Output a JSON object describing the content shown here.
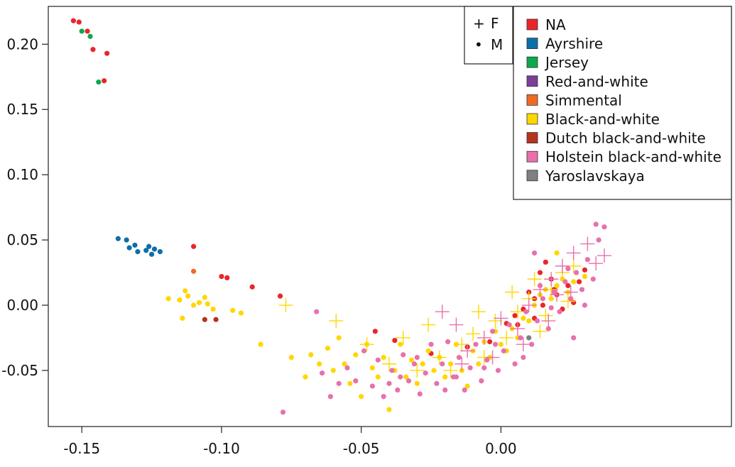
{
  "chart_data": {
    "type": "scatter",
    "title": "",
    "xlabel": "",
    "ylabel": "",
    "xlim": [
      -0.162,
      0.0825
    ],
    "ylim": [
      -0.093,
      0.229
    ],
    "x_ticks": [
      -0.15,
      -0.1,
      -0.05,
      0.0
    ],
    "x_tick_labels": [
      "-0.15",
      "-0.10",
      "-0.05",
      "0.00"
    ],
    "y_ticks": [
      0.2,
      0.15,
      0.1,
      0.05,
      0.0,
      -0.05
    ],
    "y_tick_labels": [
      "0.20",
      "0.15",
      "0.10",
      "0.05",
      "0.00",
      "-0.05"
    ],
    "grid": false,
    "legend_placement": "top-right",
    "sex_legend": [
      {
        "symbol": "+",
        "label": "F"
      },
      {
        "symbol": "•",
        "label": "M"
      }
    ],
    "series": [
      {
        "name": "NA",
        "color": "#e8262a",
        "points": [
          [
            -0.153,
            0.218,
            "M"
          ],
          [
            -0.151,
            0.217,
            "M"
          ],
          [
            -0.148,
            0.21,
            "M"
          ],
          [
            -0.146,
            0.196,
            "M"
          ],
          [
            -0.141,
            0.193,
            "M"
          ],
          [
            -0.142,
            0.172,
            "M"
          ],
          [
            -0.11,
            0.045,
            "M"
          ],
          [
            -0.1,
            0.022,
            "M"
          ],
          [
            -0.098,
            0.021,
            "M"
          ],
          [
            -0.089,
            0.014,
            "M"
          ],
          [
            -0.079,
            0.007,
            "M"
          ],
          [
            -0.045,
            -0.02,
            "M"
          ],
          [
            -0.038,
            -0.027,
            "M"
          ],
          [
            -0.025,
            -0.037,
            "M"
          ],
          [
            -0.012,
            -0.032,
            "M"
          ],
          [
            -0.004,
            -0.028,
            "M"
          ],
          [
            0.002,
            -0.014,
            "M"
          ],
          [
            0.005,
            -0.008,
            "M"
          ],
          [
            0.008,
            -0.003,
            "M"
          ],
          [
            0.01,
            0.01,
            "M"
          ],
          [
            0.012,
            0.005,
            "M"
          ],
          [
            0.014,
            0.025,
            "M"
          ],
          [
            0.016,
            0.033,
            "M"
          ],
          [
            0.018,
            0.02,
            "M"
          ],
          [
            0.02,
            0.008,
            "M"
          ],
          [
            0.022,
            -0.003,
            "M"
          ],
          [
            0.024,
            0.015,
            "M"
          ],
          [
            0.026,
            0.002,
            "M"
          ],
          [
            0.028,
            0.018,
            "M"
          ],
          [
            0.03,
            0.027,
            "M"
          ],
          [
            0.006,
            -0.015,
            "M"
          ],
          [
            0.012,
            -0.01,
            "M"
          ],
          [
            0.015,
            0.0,
            "M"
          ],
          [
            0.019,
            0.012,
            "M"
          ]
        ]
      },
      {
        "name": "Ayrshire",
        "color": "#0d6fa8",
        "points": [
          [
            -0.137,
            0.051,
            "M"
          ],
          [
            -0.134,
            0.05,
            "M"
          ],
          [
            -0.133,
            0.044,
            "M"
          ],
          [
            -0.131,
            0.046,
            "M"
          ],
          [
            -0.13,
            0.041,
            "M"
          ],
          [
            -0.127,
            0.042,
            "M"
          ],
          [
            -0.126,
            0.045,
            "M"
          ],
          [
            -0.125,
            0.039,
            "M"
          ],
          [
            -0.124,
            0.043,
            "M"
          ],
          [
            -0.122,
            0.041,
            "M"
          ]
        ]
      },
      {
        "name": "Jersey",
        "color": "#0da84e",
        "points": [
          [
            -0.15,
            0.21,
            "M"
          ],
          [
            -0.147,
            0.206,
            "M"
          ],
          [
            -0.144,
            0.171,
            "M"
          ]
        ]
      },
      {
        "name": "Red-and-white",
        "color": "#7b3f98",
        "points": []
      },
      {
        "name": "Simmental",
        "color": "#f06a23",
        "points": [
          [
            -0.11,
            0.026,
            "M"
          ]
        ]
      },
      {
        "name": "Black-and-white",
        "color": "#ffd700",
        "points": [
          [
            -0.119,
            0.005,
            "M"
          ],
          [
            -0.115,
            0.004,
            "M"
          ],
          [
            -0.113,
            0.011,
            "M"
          ],
          [
            -0.112,
            0.007,
            "M"
          ],
          [
            -0.11,
            0.0,
            "M"
          ],
          [
            -0.108,
            0.002,
            "M"
          ],
          [
            -0.106,
            0.006,
            "M"
          ],
          [
            -0.105,
            0.001,
            "M"
          ],
          [
            -0.103,
            -0.003,
            "M"
          ],
          [
            -0.096,
            -0.004,
            "M"
          ],
          [
            -0.093,
            -0.006,
            "M"
          ],
          [
            -0.114,
            -0.01,
            "M"
          ],
          [
            -0.086,
            -0.03,
            "M"
          ],
          [
            -0.075,
            -0.04,
            "M"
          ],
          [
            -0.07,
            -0.055,
            "M"
          ],
          [
            -0.068,
            -0.038,
            "M"
          ],
          [
            -0.065,
            -0.045,
            "M"
          ],
          [
            -0.062,
            -0.033,
            "M"
          ],
          [
            -0.06,
            -0.05,
            "M"
          ],
          [
            -0.058,
            -0.025,
            "M"
          ],
          [
            -0.056,
            -0.045,
            "M"
          ],
          [
            -0.054,
            -0.06,
            "M"
          ],
          [
            -0.052,
            -0.038,
            "M"
          ],
          [
            -0.05,
            -0.07,
            "M"
          ],
          [
            -0.048,
            -0.03,
            "M"
          ],
          [
            -0.046,
            -0.048,
            "M"
          ],
          [
            -0.044,
            -0.055,
            "M"
          ],
          [
            -0.042,
            -0.04,
            "M"
          ],
          [
            -0.04,
            -0.08,
            "M"
          ],
          [
            -0.038,
            -0.05,
            "M"
          ],
          [
            -0.036,
            -0.03,
            "M"
          ],
          [
            -0.034,
            -0.055,
            "M"
          ],
          [
            -0.032,
            -0.042,
            "M"
          ],
          [
            -0.03,
            -0.06,
            "M"
          ],
          [
            -0.028,
            -0.045,
            "M"
          ],
          [
            -0.026,
            -0.035,
            "M"
          ],
          [
            -0.024,
            -0.05,
            "M"
          ],
          [
            -0.022,
            -0.04,
            "M"
          ],
          [
            -0.02,
            -0.055,
            "M"
          ],
          [
            -0.018,
            -0.045,
            "M"
          ],
          [
            -0.016,
            -0.03,
            "M"
          ],
          [
            -0.014,
            -0.05,
            "M"
          ],
          [
            -0.012,
            -0.062,
            "M"
          ],
          [
            -0.01,
            -0.035,
            "M"
          ],
          [
            -0.008,
            -0.045,
            "M"
          ],
          [
            -0.006,
            -0.028,
            "M"
          ],
          [
            -0.004,
            -0.04,
            "M"
          ],
          [
            -0.002,
            -0.02,
            "M"
          ],
          [
            0.0,
            -0.03,
            "M"
          ],
          [
            0.002,
            -0.035,
            "M"
          ],
          [
            0.004,
            -0.018,
            "M"
          ],
          [
            0.006,
            -0.025,
            "M"
          ],
          [
            0.008,
            -0.01,
            "M"
          ],
          [
            0.01,
            -0.012,
            "M"
          ],
          [
            0.012,
            0.0,
            "M"
          ],
          [
            0.014,
            0.008,
            "M"
          ],
          [
            0.016,
            0.012,
            "M"
          ],
          [
            0.018,
            0.005,
            "M"
          ],
          [
            0.02,
            0.015,
            "M"
          ],
          [
            0.022,
            0.02,
            "M"
          ],
          [
            0.024,
            0.01,
            "M"
          ],
          [
            0.026,
            0.018,
            "M"
          ],
          [
            0.03,
            0.022,
            "M"
          ],
          [
            0.02,
            0.04,
            "M"
          ],
          [
            -0.077,
            0.0,
            "F"
          ],
          [
            -0.059,
            -0.012,
            "F"
          ],
          [
            -0.048,
            -0.03,
            "F"
          ],
          [
            -0.04,
            -0.045,
            "F"
          ],
          [
            -0.035,
            -0.025,
            "F"
          ],
          [
            -0.03,
            -0.05,
            "F"
          ],
          [
            -0.026,
            -0.015,
            "F"
          ],
          [
            -0.022,
            -0.04,
            "F"
          ],
          [
            -0.018,
            -0.05,
            "F"
          ],
          [
            -0.014,
            -0.03,
            "F"
          ],
          [
            -0.01,
            -0.022,
            "F"
          ],
          [
            -0.006,
            -0.04,
            "F"
          ],
          [
            -0.002,
            -0.012,
            "F"
          ],
          [
            0.002,
            -0.025,
            "F"
          ],
          [
            0.006,
            -0.005,
            "F"
          ],
          [
            0.01,
            0.005,
            "F"
          ],
          [
            0.014,
            -0.02,
            "F"
          ],
          [
            0.018,
            0.012,
            "F"
          ],
          [
            0.022,
            0.025,
            "F"
          ],
          [
            0.026,
            0.03,
            "F"
          ],
          [
            -0.008,
            -0.005,
            "F"
          ],
          [
            0.004,
            0.01,
            "F"
          ],
          [
            0.016,
            -0.008,
            "F"
          ],
          [
            0.024,
            0.003,
            "F"
          ],
          [
            0.012,
            0.02,
            "F"
          ]
        ]
      },
      {
        "name": "Dutch black-and-white",
        "color": "#b5341b",
        "points": [
          [
            -0.106,
            -0.011,
            "M"
          ],
          [
            -0.102,
            -0.011,
            "M"
          ]
        ]
      },
      {
        "name": "Holstein black-and-white",
        "color": "#e870ad",
        "points": [
          [
            -0.078,
            -0.082,
            "M"
          ],
          [
            -0.066,
            -0.005,
            "M"
          ],
          [
            -0.064,
            -0.052,
            "M"
          ],
          [
            -0.061,
            -0.07,
            "M"
          ],
          [
            -0.058,
            -0.06,
            "M"
          ],
          [
            -0.055,
            -0.048,
            "M"
          ],
          [
            -0.052,
            -0.058,
            "M"
          ],
          [
            -0.049,
            -0.035,
            "M"
          ],
          [
            -0.046,
            -0.062,
            "M"
          ],
          [
            -0.044,
            -0.042,
            "M"
          ],
          [
            -0.042,
            -0.07,
            "M"
          ],
          [
            -0.039,
            -0.05,
            "M"
          ],
          [
            -0.037,
            -0.065,
            "M"
          ],
          [
            -0.035,
            -0.038,
            "M"
          ],
          [
            -0.033,
            -0.058,
            "M"
          ],
          [
            -0.031,
            -0.045,
            "M"
          ],
          [
            -0.029,
            -0.068,
            "M"
          ],
          [
            -0.027,
            -0.052,
            "M"
          ],
          [
            -0.025,
            -0.03,
            "M"
          ],
          [
            -0.023,
            -0.06,
            "M"
          ],
          [
            -0.021,
            -0.045,
            "M"
          ],
          [
            -0.019,
            -0.028,
            "M"
          ],
          [
            -0.017,
            -0.055,
            "M"
          ],
          [
            -0.015,
            -0.04,
            "M"
          ],
          [
            -0.013,
            -0.065,
            "M"
          ],
          [
            -0.011,
            -0.048,
            "M"
          ],
          [
            -0.009,
            -0.03,
            "M"
          ],
          [
            -0.007,
            -0.058,
            "M"
          ],
          [
            -0.005,
            -0.042,
            "M"
          ],
          [
            -0.003,
            -0.02,
            "M"
          ],
          [
            -0.001,
            -0.05,
            "M"
          ],
          [
            0.001,
            -0.035,
            "M"
          ],
          [
            0.003,
            -0.015,
            "M"
          ],
          [
            0.005,
            -0.045,
            "M"
          ],
          [
            0.007,
            -0.025,
            "M"
          ],
          [
            0.009,
            -0.005,
            "M"
          ],
          [
            0.011,
            -0.03,
            "M"
          ],
          [
            0.013,
            -0.012,
            "M"
          ],
          [
            0.015,
            0.005,
            "M"
          ],
          [
            0.017,
            -0.018,
            "M"
          ],
          [
            0.019,
            0.01,
            "M"
          ],
          [
            0.021,
            -0.005,
            "M"
          ],
          [
            0.023,
            0.018,
            "M"
          ],
          [
            0.025,
            0.005,
            "M"
          ],
          [
            0.027,
            0.025,
            "M"
          ],
          [
            0.029,
            0.012,
            "M"
          ],
          [
            0.031,
            0.035,
            "M"
          ],
          [
            0.033,
            0.02,
            "M"
          ],
          [
            0.035,
            0.05,
            "M"
          ],
          [
            0.037,
            0.06,
            "M"
          ],
          [
            0.034,
            0.062,
            "M"
          ],
          [
            0.012,
            0.04,
            "M"
          ],
          [
            0.026,
            -0.025,
            "M"
          ],
          [
            -0.036,
            -0.055,
            "M"
          ],
          [
            -0.02,
            -0.065,
            "M"
          ],
          [
            -0.006,
            -0.048,
            "M"
          ],
          [
            0.008,
            -0.04,
            "M"
          ],
          [
            0.018,
            -0.002,
            "M"
          ],
          [
            0.03,
            0.0,
            "M"
          ],
          [
            -0.04,
            -0.06,
            "M"
          ],
          [
            -0.03,
            -0.04,
            "M"
          ],
          [
            -0.016,
            -0.055,
            "M"
          ],
          [
            -0.002,
            -0.03,
            "M"
          ],
          [
            0.014,
            0.015,
            "M"
          ],
          [
            0.024,
            0.028,
            "M"
          ],
          [
            -0.021,
            -0.005,
            "F"
          ],
          [
            -0.016,
            -0.015,
            "F"
          ],
          [
            -0.012,
            -0.035,
            "F"
          ],
          [
            -0.006,
            -0.025,
            "F"
          ],
          [
            0.0,
            -0.01,
            "F"
          ],
          [
            0.006,
            -0.018,
            "F"
          ],
          [
            0.01,
            0.0,
            "F"
          ],
          [
            0.014,
            0.012,
            "F"
          ],
          [
            0.018,
            0.02,
            "F"
          ],
          [
            0.022,
            0.03,
            "F"
          ],
          [
            0.026,
            0.04,
            "F"
          ],
          [
            0.031,
            0.047,
            "F"
          ],
          [
            0.034,
            0.032,
            "F"
          ],
          [
            0.037,
            0.038,
            "F"
          ],
          [
            0.025,
            0.01,
            "F"
          ],
          [
            0.017,
            -0.012,
            "F"
          ],
          [
            0.008,
            -0.03,
            "F"
          ],
          [
            -0.003,
            -0.04,
            "F"
          ],
          [
            -0.014,
            -0.045,
            "F"
          ],
          [
            0.02,
            0.008,
            "F"
          ]
        ]
      },
      {
        "name": "Yaroslavskaya",
        "color": "#808080",
        "points": [
          [
            0.01,
            -0.025,
            "M"
          ]
        ]
      }
    ]
  }
}
